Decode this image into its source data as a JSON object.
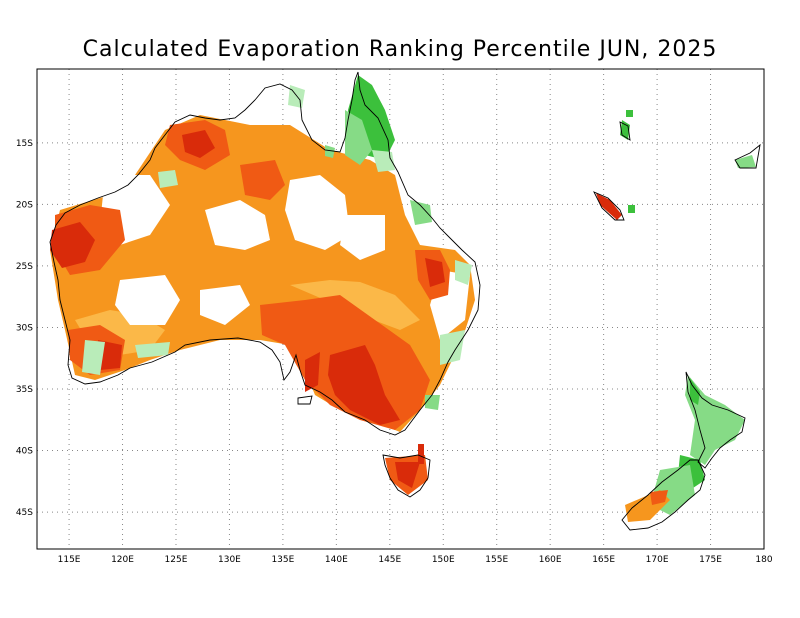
{
  "title": "Calculated Evaporation Ranking Percentile JUN, 2025",
  "map": {
    "lon_range": [
      112,
      180
    ],
    "lat_range": [
      -48,
      -9
    ],
    "x_ticks": [
      "115E",
      "120E",
      "125E",
      "130E",
      "135E",
      "140E",
      "145E",
      "150E",
      "155E",
      "160E",
      "165E",
      "170E",
      "175E",
      "180"
    ],
    "y_ticks": [
      "15S",
      "20S",
      "25S",
      "30S",
      "35S",
      "40S",
      "45S"
    ],
    "grid": true,
    "colors": {
      "very_high": "#d92b0a",
      "high": "#f05a14",
      "above": "#f6961e",
      "slightly_above": "#fbb848",
      "slightly_below": "#b9ecb9",
      "below": "#86db86",
      "low": "#3cc03c"
    }
  }
}
